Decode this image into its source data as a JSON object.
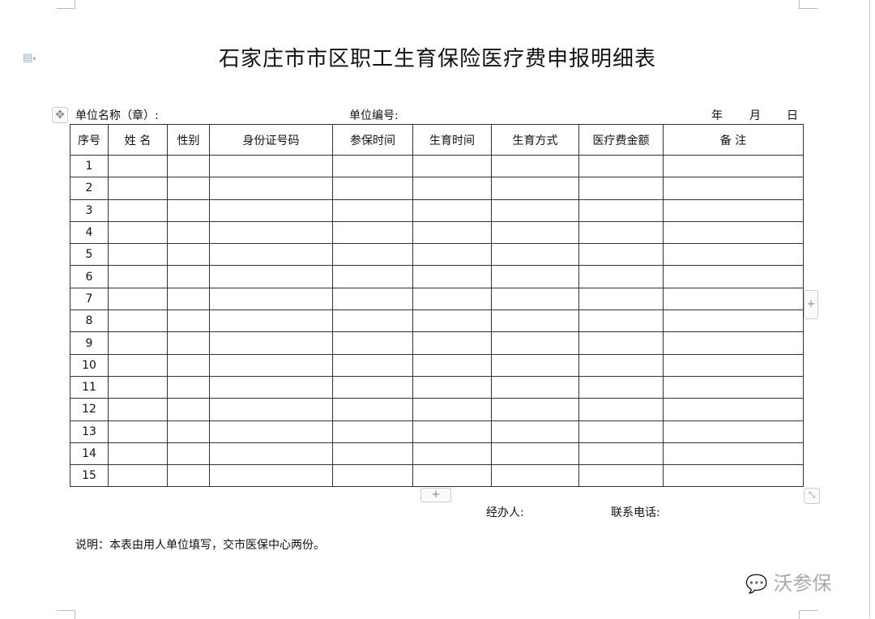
{
  "title": "石家庄市市区职工生育保险医疗费申报明细表",
  "fields": {
    "unit_name": "单位名称（章）:",
    "unit_code": "单位编号:",
    "year": "年",
    "month": "月",
    "day": "日"
  },
  "table": {
    "headers": [
      "序号",
      "姓 名",
      "性别",
      "身份证号码",
      "参保时间",
      "生育时间",
      "生育方式",
      "医疗费金额",
      "备 注"
    ],
    "rows": [
      "1",
      "2",
      "3",
      "4",
      "5",
      "6",
      "7",
      "8",
      "9",
      "10",
      "11",
      "12",
      "13",
      "14",
      "15"
    ]
  },
  "footer": {
    "handler": "经办人:",
    "phone": "联系电话:",
    "note": "说明：本表由用人单位填写，交市医保中心两份。"
  },
  "watermark": "沃参保",
  "controls": {
    "add_row": "+",
    "add_col": "+"
  }
}
